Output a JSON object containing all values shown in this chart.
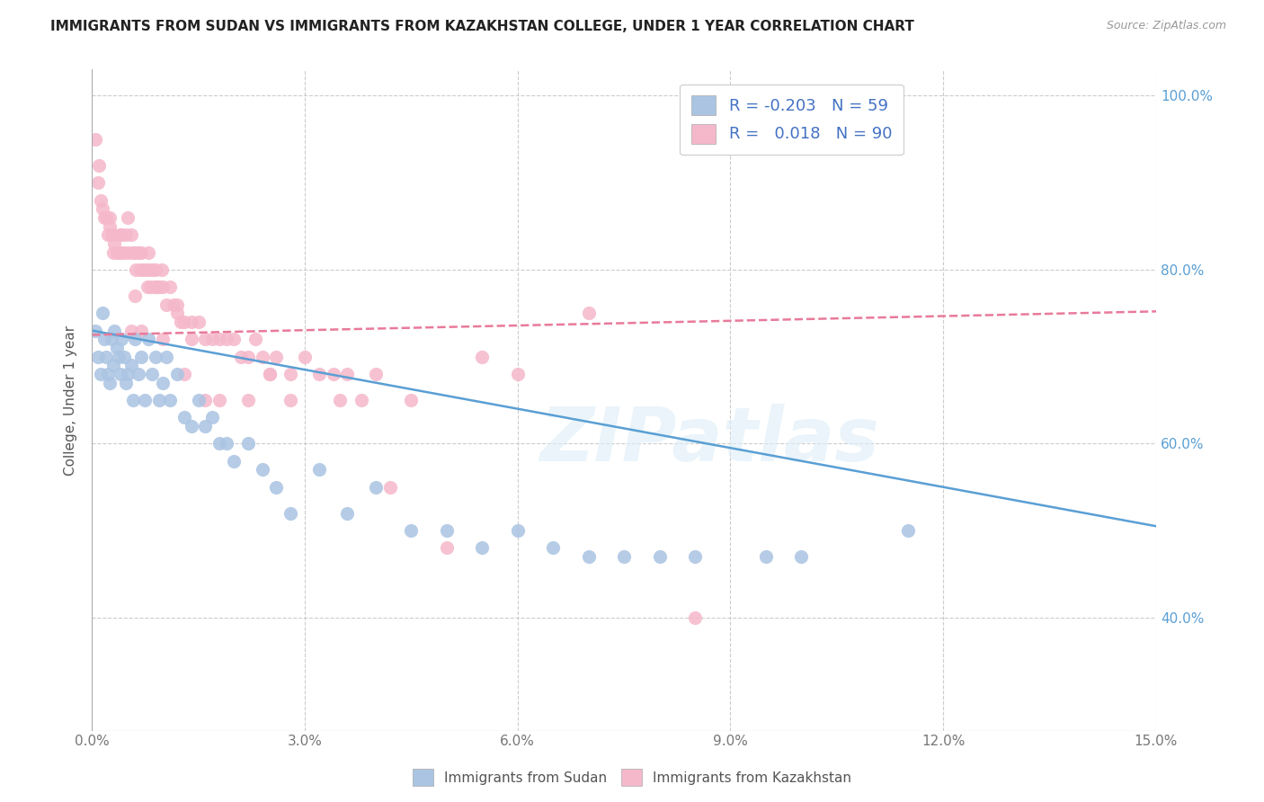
{
  "title": "IMMIGRANTS FROM SUDAN VS IMMIGRANTS FROM KAZAKHSTAN COLLEGE, UNDER 1 YEAR CORRELATION CHART",
  "source": "Source: ZipAtlas.com",
  "xlim": [
    0.0,
    15.0
  ],
  "ylim": [
    27.0,
    103.0
  ],
  "ylabel": "College, Under 1 year",
  "watermark": "ZIPatlas",
  "legend_R1": "-0.203",
  "legend_N1": "59",
  "legend_R2": "0.018",
  "legend_N2": "90",
  "color_sudan": "#aac4e2",
  "color_kazakhstan": "#f5b8cb",
  "color_line_sudan": "#5a9fd4",
  "color_line_kazakhstan": "#e87a9a",
  "sudan_x": [
    0.05,
    0.08,
    0.12,
    0.15,
    0.18,
    0.2,
    0.22,
    0.25,
    0.28,
    0.3,
    0.32,
    0.35,
    0.38,
    0.4,
    0.42,
    0.45,
    0.48,
    0.5,
    0.55,
    0.58,
    0.6,
    0.65,
    0.7,
    0.75,
    0.8,
    0.85,
    0.9,
    0.95,
    1.0,
    1.05,
    1.1,
    1.2,
    1.3,
    1.4,
    1.5,
    1.6,
    1.7,
    1.8,
    1.9,
    2.0,
    2.2,
    2.4,
    2.6,
    2.8,
    3.2,
    3.6,
    4.0,
    4.5,
    5.0,
    5.5,
    6.0,
    6.5,
    7.0,
    7.5,
    8.0,
    8.5,
    9.5,
    10.0,
    11.5
  ],
  "sudan_y": [
    73,
    70,
    68,
    75,
    72,
    70,
    68,
    67,
    72,
    69,
    73,
    71,
    70,
    68,
    72,
    70,
    67,
    68,
    69,
    65,
    72,
    68,
    70,
    65,
    72,
    68,
    70,
    65,
    67,
    70,
    65,
    68,
    63,
    62,
    65,
    62,
    63,
    60,
    60,
    58,
    60,
    57,
    55,
    52,
    57,
    52,
    55,
    50,
    50,
    48,
    50,
    48,
    47,
    47,
    47,
    47,
    47,
    47,
    50
  ],
  "kazakhstan_x": [
    0.05,
    0.08,
    0.1,
    0.12,
    0.15,
    0.18,
    0.2,
    0.22,
    0.25,
    0.28,
    0.3,
    0.32,
    0.35,
    0.38,
    0.4,
    0.42,
    0.45,
    0.48,
    0.5,
    0.52,
    0.55,
    0.58,
    0.6,
    0.62,
    0.65,
    0.68,
    0.7,
    0.72,
    0.75,
    0.78,
    0.8,
    0.82,
    0.85,
    0.88,
    0.9,
    0.92,
    0.95,
    0.98,
    1.0,
    1.05,
    1.1,
    1.15,
    1.2,
    1.25,
    1.3,
    1.4,
    1.5,
    1.6,
    1.7,
    1.8,
    1.9,
    2.0,
    2.1,
    2.2,
    2.3,
    2.4,
    2.5,
    2.6,
    2.8,
    3.0,
    3.2,
    3.4,
    3.6,
    3.8,
    4.0,
    4.2,
    4.5,
    5.0,
    5.5,
    6.0,
    7.0,
    8.5,
    1.8,
    2.5,
    0.3,
    0.55,
    0.7,
    1.0,
    1.4,
    0.25,
    1.6,
    0.8,
    0.4,
    2.2,
    1.2,
    0.6,
    1.3,
    3.5,
    0.9,
    2.8
  ],
  "kazakhstan_y": [
    95,
    90,
    92,
    88,
    87,
    86,
    86,
    84,
    85,
    84,
    84,
    83,
    82,
    82,
    84,
    82,
    82,
    84,
    86,
    82,
    84,
    82,
    82,
    80,
    82,
    80,
    82,
    80,
    80,
    78,
    82,
    78,
    80,
    78,
    80,
    78,
    78,
    80,
    78,
    76,
    78,
    76,
    76,
    74,
    74,
    74,
    74,
    72,
    72,
    72,
    72,
    72,
    70,
    70,
    72,
    70,
    68,
    70,
    68,
    70,
    68,
    68,
    68,
    65,
    68,
    55,
    65,
    48,
    70,
    68,
    75,
    40,
    65,
    68,
    82,
    73,
    73,
    72,
    72,
    86,
    65,
    80,
    84,
    65,
    75,
    77,
    68,
    65,
    78,
    65
  ]
}
